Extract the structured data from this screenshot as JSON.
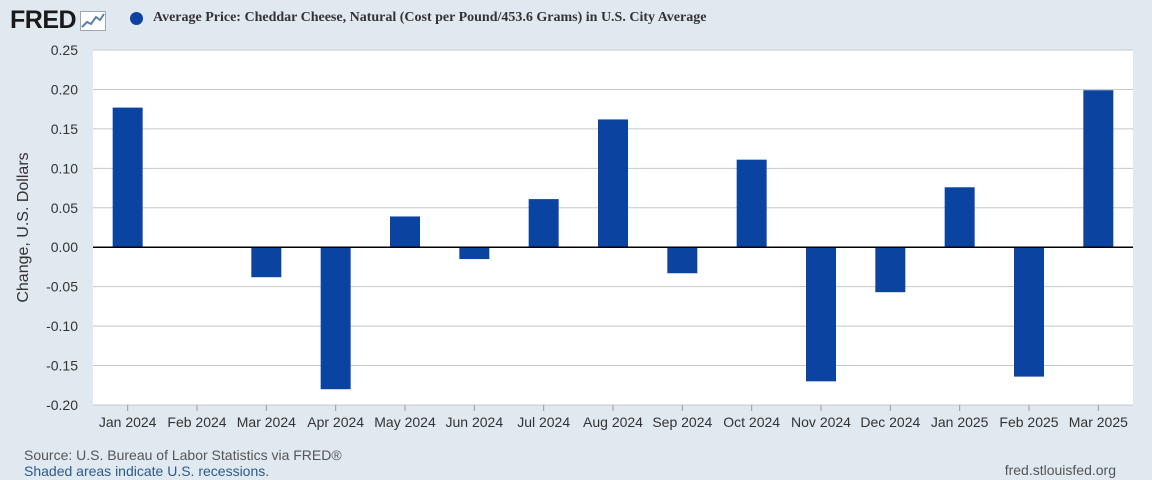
{
  "header": {
    "logo_text": "FRED",
    "series_title": "Average Price: Cheddar Cheese, Natural (Cost per Pound/453.6 Grams) in U.S. City Average"
  },
  "colors": {
    "bar": "#0b44a0",
    "background": "#e1e9f0",
    "plot_background": "#ffffff",
    "gridline": "#c8c8c8",
    "zero_line": "#000000"
  },
  "chart_data": {
    "type": "bar",
    "title": "Average Price: Cheddar Cheese, Natural (Cost per Pound/453.6 Grams) in U.S. City Average",
    "xlabel": "",
    "ylabel": "Change, U.S. Dollars",
    "categories": [
      "Jan 2024",
      "Feb 2024",
      "Mar 2024",
      "Apr 2024",
      "May 2024",
      "Jun 2024",
      "Jul 2024",
      "Aug 2024",
      "Sep 2024",
      "Oct 2024",
      "Nov 2024",
      "Dec 2024",
      "Jan 2025",
      "Feb 2025",
      "Mar 2025"
    ],
    "values": [
      0.177,
      0.0,
      -0.038,
      -0.18,
      0.039,
      -0.015,
      0.061,
      0.162,
      -0.033,
      0.111,
      -0.17,
      -0.057,
      0.076,
      -0.164,
      0.199
    ],
    "yticks": [
      "0.25",
      "0.20",
      "0.15",
      "0.10",
      "0.05",
      "0.00",
      "-0.05",
      "-0.10",
      "-0.15",
      "-0.20"
    ],
    "ylim": [
      -0.2,
      0.25
    ],
    "grid": true
  },
  "footer": {
    "source": "Source: U.S. Bureau of Labor Statistics via FRED®",
    "recession_note": "Shaded areas indicate U.S. recessions.",
    "site": "fred.stlouisfed.org"
  }
}
